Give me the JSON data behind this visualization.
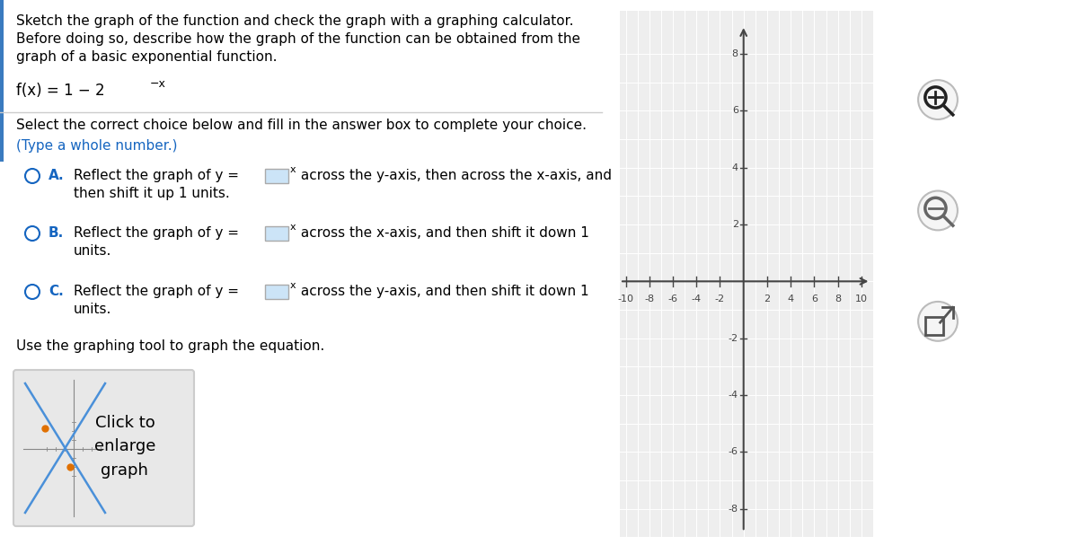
{
  "title_text_line1": "Sketch the graph of the function and check the graph with a graphing calculator.",
  "title_text_line2": "Before doing so, describe how the graph of the function can be obtained from the",
  "title_text_line3": "graph of a basic exponential function.",
  "function_base": "f(x) = 1 − 2",
  "function_sup": "−x",
  "select_text": "Select the correct choice below and fill in the answer box to complete your choice.",
  "type_text": "(Type a whole number.)",
  "optA_pre": "Reflect the graph of y =",
  "optA_sup": "x",
  "optA_post": " across the y-axis, then across the x-axis, and",
  "optA_post2": "then shift it up 1 units.",
  "optB_pre": "Reflect the graph of y =",
  "optB_sup": "x",
  "optB_post": " across the x-axis, and then shift it down 1",
  "optB_post2": "units.",
  "optC_pre": "Reflect the graph of y =",
  "optC_sup": "x",
  "optC_post": " across the y-axis, and then shift it down 1",
  "optC_post2": "units.",
  "use_text": "Use the graphing tool to graph the equation.",
  "click_text": "Click to\nenlarge\ngraph",
  "graph_xlim": [
    -10,
    10
  ],
  "graph_ylim": [
    -8,
    8
  ],
  "graph_xticks": [
    -10,
    -8,
    -6,
    -4,
    -2,
    2,
    4,
    6,
    8,
    10
  ],
  "graph_yticks": [
    -8,
    -6,
    -4,
    -2,
    2,
    4,
    6,
    8
  ],
  "bg_color": "#ffffff",
  "graph_bg": "#eeeeee",
  "grid_color": "#ffffff",
  "axis_color": "#444444",
  "text_color": "#000000",
  "blue_label_color": "#1565c0",
  "circle_color": "#1565c0",
  "box_fill": "#cce4f7",
  "box_edge": "#aaaaaa",
  "divider_color": "#cccccc",
  "left_bar_color": "#3a7bbf",
  "btn_fill": "#f5f5f5",
  "btn_edge": "#bbbbbb",
  "mini_line_color": "#4a90d9",
  "mini_dot_color": "#e07000",
  "mini_axis_color": "#888888",
  "click_box_fill": "#e8e8e8",
  "click_box_edge": "#cccccc"
}
